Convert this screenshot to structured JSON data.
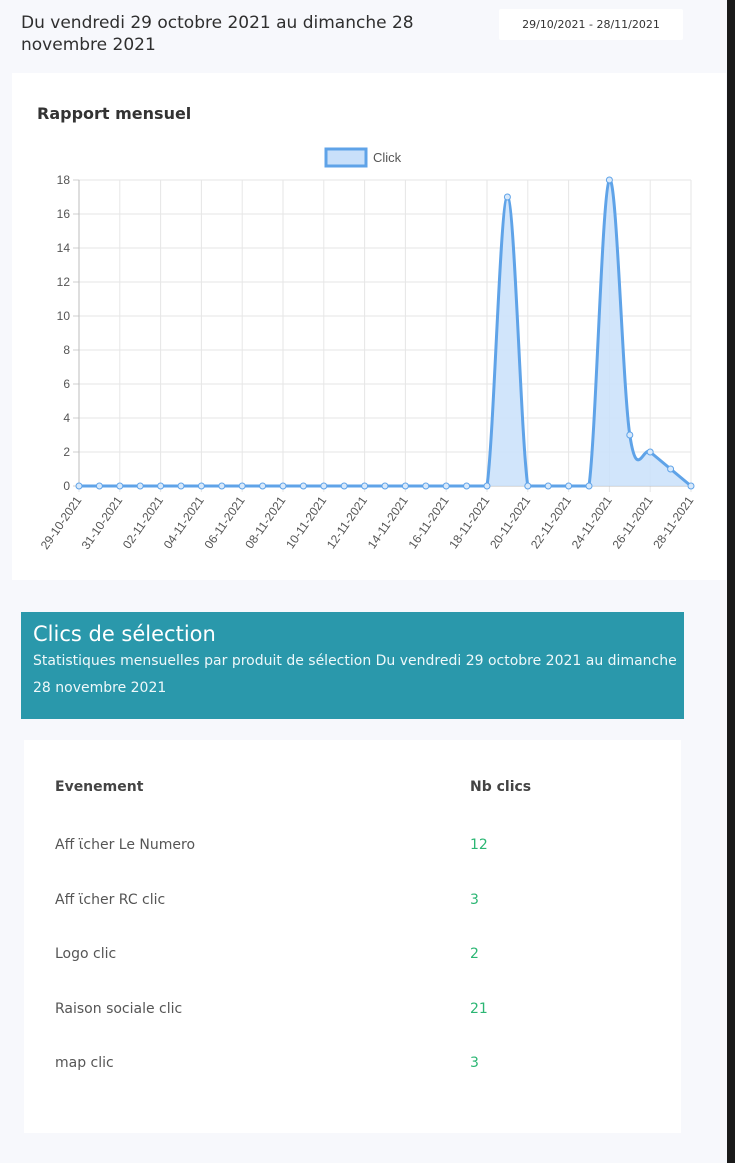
{
  "header": {
    "title": "Du vendredi 29 octobre 2021 au dimanche 28 novembre 2021",
    "date_range": "29/10/2021 - 28/11/2021"
  },
  "chart_card": {
    "title": "Rapport mensuel"
  },
  "chart_data": {
    "type": "area",
    "legend": [
      "Click"
    ],
    "legend_position": "top",
    "grid": true,
    "ylim": [
      0,
      18
    ],
    "y_ticks": [
      0,
      2,
      4,
      6,
      8,
      10,
      12,
      14,
      16,
      18
    ],
    "x_tick_labels": [
      "29-10-2021",
      "31-10-2021",
      "02-11-2021",
      "04-11-2021",
      "06-11-2021",
      "08-11-2021",
      "10-11-2021",
      "12-11-2021",
      "14-11-2021",
      "16-11-2021",
      "18-11-2021",
      "20-11-2021",
      "22-11-2021",
      "24-11-2021",
      "26-11-2021",
      "28-11-2021"
    ],
    "x": [
      "29-10-2021",
      "30-10-2021",
      "31-10-2021",
      "01-11-2021",
      "02-11-2021",
      "03-11-2021",
      "04-11-2021",
      "05-11-2021",
      "06-11-2021",
      "07-11-2021",
      "08-11-2021",
      "09-11-2021",
      "10-11-2021",
      "11-11-2021",
      "12-11-2021",
      "13-11-2021",
      "14-11-2021",
      "15-11-2021",
      "16-11-2021",
      "17-11-2021",
      "18-11-2021",
      "19-11-2021",
      "20-11-2021",
      "21-11-2021",
      "22-11-2021",
      "23-11-2021",
      "24-11-2021",
      "25-11-2021",
      "26-11-2021",
      "27-11-2021",
      "28-11-2021"
    ],
    "series": [
      {
        "name": "Click",
        "values": [
          0,
          0,
          0,
          0,
          0,
          0,
          0,
          0,
          0,
          0,
          0,
          0,
          0,
          0,
          0,
          0,
          0,
          0,
          0,
          0,
          0,
          17,
          0,
          0,
          0,
          0,
          18,
          3,
          2,
          1,
          0
        ]
      }
    ],
    "colors": {
      "line": "#5fa3e8",
      "fill": "#c9e0fa",
      "grid": "#e6e6e6"
    }
  },
  "selection": {
    "title": "Clics de sélection",
    "subtitle": "Statistiques mensuelles par produit de sélection Du vendredi 29 octobre 2021 au dimanche 28 novembre 2021"
  },
  "table": {
    "headers": {
      "event": "Evenement",
      "clicks": "Nb clics"
    },
    "rows": [
      {
        "event": "Aff ϊcher Le Numero",
        "clicks": "12"
      },
      {
        "event": "Aff ϊcher RC clic",
        "clicks": "3"
      },
      {
        "event": "Logo clic",
        "clicks": "2"
      },
      {
        "event": "Raison sociale clic",
        "clicks": "21"
      },
      {
        "event": "map clic",
        "clicks": "3"
      }
    ]
  },
  "colors": {
    "banner": "#2a98ab",
    "accent_number": "#2bb673"
  }
}
